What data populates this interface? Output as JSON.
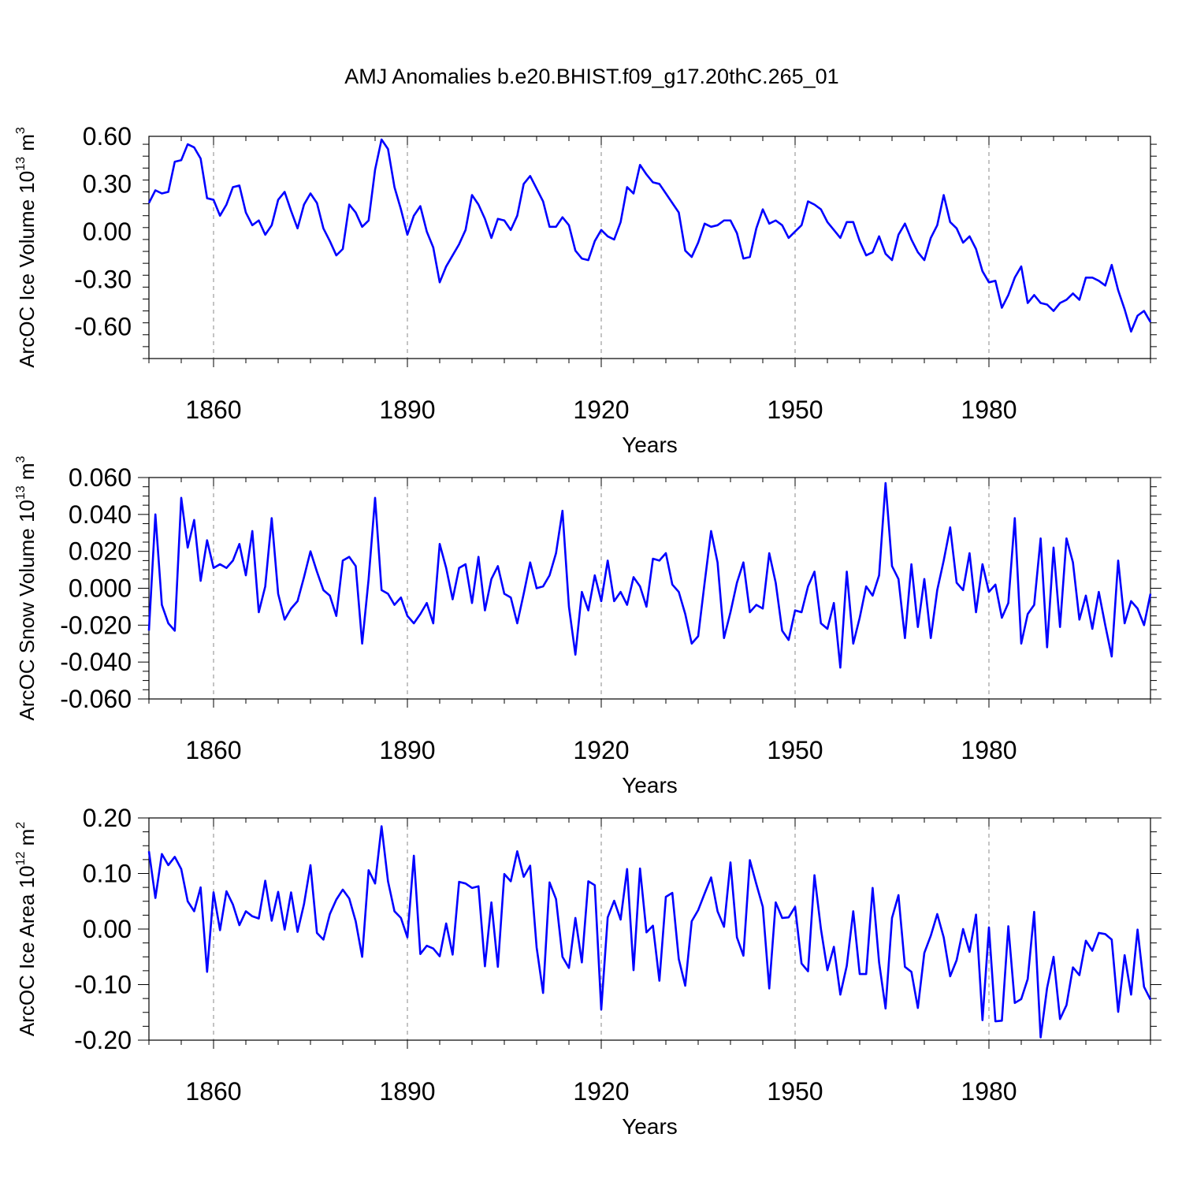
{
  "title": "AMJ Anomalies b.e20.BHIST.f09_g17.20thC.265_01",
  "colors": {
    "line": "#0000ff",
    "axis": "#000000",
    "grid": "#888888"
  },
  "chart_data": [
    {
      "type": "line",
      "xlabel": "Years",
      "ylabel": {
        "text": "ArcOC Ice Volume 10",
        "sup": "13",
        "unit": " m",
        "unit_sup": "3"
      },
      "xlim": [
        1850,
        2005
      ],
      "ylim": [
        -0.8,
        0.6
      ],
      "yticks": [
        0.6,
        0.3,
        0.0,
        -0.3,
        -0.6
      ],
      "ytick_labels": [
        "0.60",
        "0.30",
        "0.00",
        "-0.30",
        "-0.60"
      ],
      "xticks": [
        1860,
        1890,
        1920,
        1950,
        1980
      ],
      "xtick_labels": [
        "1860",
        "1890",
        "1920",
        "1950",
        "1980"
      ],
      "grid": "vertical-dashed",
      "x_start": 1850,
      "series": [
        {
          "values": [
            0.18,
            0.26,
            0.24,
            0.25,
            0.44,
            0.45,
            0.55,
            0.53,
            0.46,
            0.21,
            0.2,
            0.1,
            0.17,
            0.28,
            0.29,
            0.12,
            0.04,
            0.07,
            -0.02,
            0.04,
            0.2,
            0.25,
            0.13,
            0.02,
            0.17,
            0.24,
            0.18,
            0.02,
            -0.06,
            -0.15,
            -0.11,
            0.17,
            0.12,
            0.03,
            0.07,
            0.39,
            0.58,
            0.52,
            0.28,
            0.14,
            -0.02,
            0.1,
            0.16,
            0.0,
            -0.1,
            -0.32,
            -0.22,
            -0.15,
            -0.08,
            0.01,
            0.23,
            0.17,
            0.08,
            -0.04,
            0.08,
            0.07,
            0.01,
            0.1,
            0.3,
            0.35,
            0.27,
            0.19,
            0.03,
            0.03,
            0.09,
            0.04,
            -0.12,
            -0.17,
            -0.18,
            -0.06,
            0.01,
            -0.03,
            -0.05,
            0.06,
            0.28,
            0.24,
            0.42,
            0.36,
            0.31,
            0.3,
            0.24,
            0.18,
            0.12,
            -0.12,
            -0.16,
            -0.07,
            0.05,
            0.03,
            0.04,
            0.07,
            0.07,
            -0.01,
            -0.17,
            -0.16,
            0.02,
            0.14,
            0.05,
            0.07,
            0.04,
            -0.04,
            0.0,
            0.04,
            0.19,
            0.17,
            0.14,
            0.06,
            0.01,
            -0.04,
            0.06,
            0.06,
            -0.06,
            -0.15,
            -0.13,
            -0.03,
            -0.14,
            -0.18,
            -0.02,
            0.05,
            -0.05,
            -0.13,
            -0.18,
            -0.04,
            0.04,
            0.23,
            0.06,
            0.02,
            -0.07,
            -0.03,
            -0.11,
            -0.25,
            -0.32,
            -0.31,
            -0.48,
            -0.4,
            -0.29,
            -0.22,
            -0.45,
            -0.4,
            -0.45,
            -0.46,
            -0.5,
            -0.45,
            -0.43,
            -0.39,
            -0.43,
            -0.29,
            -0.29,
            -0.31,
            -0.34,
            -0.21,
            -0.37,
            -0.49,
            -0.63,
            -0.53,
            -0.5,
            -0.57
          ]
        }
      ]
    },
    {
      "type": "line",
      "xlabel": "Years",
      "ylabel": {
        "text": "ArcOC Snow Volume 10",
        "sup": "13",
        "unit": " m",
        "unit_sup": "3"
      },
      "xlim": [
        1850,
        2005
      ],
      "ylim": [
        -0.06,
        0.06
      ],
      "yticks": [
        0.06,
        0.04,
        0.02,
        0.0,
        -0.02,
        -0.04,
        -0.06
      ],
      "ytick_labels": [
        "0.060",
        "0.040",
        "0.020",
        "0.000",
        "-0.020",
        "-0.040",
        "-0.060"
      ],
      "xticks": [
        1860,
        1890,
        1920,
        1950,
        1980
      ],
      "xtick_labels": [
        "1860",
        "1890",
        "1920",
        "1950",
        "1980"
      ],
      "grid": "vertical-dashed",
      "x_start": 1850,
      "series": [
        {
          "values": [
            -0.023,
            0.04,
            -0.009,
            -0.019,
            -0.023,
            0.049,
            0.022,
            0.037,
            0.004,
            0.026,
            0.011,
            0.013,
            0.011,
            0.015,
            0.024,
            0.007,
            0.031,
            -0.013,
            0.001,
            0.038,
            -0.003,
            -0.017,
            -0.011,
            -0.007,
            0.006,
            0.02,
            0.009,
            -0.001,
            -0.004,
            -0.015,
            0.015,
            0.017,
            0.012,
            -0.03,
            0.005,
            0.049,
            -0.001,
            -0.003,
            -0.009,
            -0.005,
            -0.015,
            -0.019,
            -0.014,
            -0.008,
            -0.019,
            0.024,
            0.011,
            -0.006,
            0.011,
            0.013,
            -0.008,
            0.017,
            -0.012,
            0.005,
            0.012,
            -0.003,
            -0.005,
            -0.019,
            -0.003,
            0.014,
            0.0,
            0.001,
            0.007,
            0.019,
            0.042,
            -0.01,
            -0.036,
            -0.002,
            -0.012,
            0.007,
            -0.007,
            0.015,
            -0.007,
            -0.002,
            -0.009,
            0.006,
            0.001,
            -0.01,
            0.016,
            0.015,
            0.019,
            0.002,
            -0.002,
            -0.014,
            -0.03,
            -0.026,
            0.003,
            0.031,
            0.014,
            -0.027,
            -0.013,
            0.003,
            0.014,
            -0.013,
            -0.009,
            -0.011,
            0.019,
            0.003,
            -0.023,
            -0.028,
            -0.012,
            -0.013,
            0.001,
            0.009,
            -0.019,
            -0.022,
            -0.008,
            -0.043,
            0.009,
            -0.03,
            -0.016,
            0.001,
            -0.004,
            0.007,
            0.057,
            0.012,
            0.005,
            -0.027,
            0.013,
            -0.021,
            0.005,
            -0.027,
            -0.001,
            0.015,
            0.033,
            0.003,
            -0.001,
            0.019,
            -0.013,
            0.013,
            -0.002,
            0.002,
            -0.016,
            -0.008,
            0.038,
            -0.03,
            -0.014,
            -0.009,
            0.027,
            -0.032,
            0.022,
            -0.021,
            0.027,
            0.014,
            -0.017,
            -0.004,
            -0.022,
            -0.002,
            -0.02,
            -0.037,
            0.015,
            -0.019,
            -0.007,
            -0.011,
            -0.02,
            -0.003
          ]
        }
      ]
    },
    {
      "type": "line",
      "xlabel": "Years",
      "ylabel": {
        "text": "ArcOC Ice Area 10",
        "sup": "12",
        "unit": " m",
        "unit_sup": "2"
      },
      "xlim": [
        1850,
        2005
      ],
      "ylim": [
        -0.2,
        0.2
      ],
      "yticks": [
        0.2,
        0.1,
        0.0,
        -0.1,
        -0.2
      ],
      "ytick_labels": [
        "0.20",
        "0.10",
        "0.00",
        "-0.10",
        "-0.20"
      ],
      "xticks": [
        1860,
        1890,
        1920,
        1950,
        1980
      ],
      "xtick_labels": [
        "1860",
        "1890",
        "1920",
        "1950",
        "1980"
      ],
      "grid": "vertical-dashed",
      "x_start": 1850,
      "series": [
        {
          "values": [
            0.14,
            0.056,
            0.135,
            0.115,
            0.13,
            0.108,
            0.05,
            0.032,
            0.075,
            -0.077,
            0.066,
            -0.002,
            0.068,
            0.044,
            0.007,
            0.032,
            0.023,
            0.019,
            0.087,
            0.015,
            0.067,
            -0.001,
            0.066,
            -0.005,
            0.045,
            0.115,
            -0.007,
            -0.019,
            0.027,
            0.053,
            0.071,
            0.055,
            0.014,
            -0.05,
            0.106,
            0.082,
            0.185,
            0.086,
            0.032,
            0.02,
            -0.015,
            0.132,
            -0.045,
            -0.03,
            -0.035,
            -0.049,
            0.01,
            -0.046,
            0.085,
            0.082,
            0.074,
            0.077,
            -0.067,
            0.048,
            -0.068,
            0.099,
            0.086,
            0.14,
            0.094,
            0.114,
            -0.033,
            -0.115,
            0.084,
            0.054,
            -0.05,
            -0.07,
            0.02,
            -0.06,
            0.086,
            0.079,
            -0.145,
            0.021,
            0.051,
            0.017,
            0.108,
            -0.074,
            0.109,
            -0.006,
            0.006,
            -0.093,
            0.058,
            0.065,
            -0.054,
            -0.102,
            0.014,
            0.034,
            0.064,
            0.093,
            0.032,
            0.004,
            0.12,
            -0.015,
            -0.048,
            0.124,
            0.081,
            0.04,
            -0.107,
            0.048,
            0.02,
            0.021,
            0.04,
            -0.062,
            -0.076,
            0.097,
            0.0,
            -0.074,
            -0.032,
            -0.118,
            -0.066,
            0.032,
            -0.081,
            -0.081,
            0.074,
            -0.06,
            -0.143,
            0.02,
            0.061,
            -0.068,
            -0.077,
            -0.142,
            -0.043,
            -0.012,
            0.027,
            -0.015,
            -0.085,
            -0.056,
            0.0,
            -0.041,
            0.026,
            -0.164,
            0.003,
            -0.166,
            -0.165,
            0.005,
            -0.133,
            -0.126,
            -0.09,
            0.031,
            -0.195,
            -0.106,
            -0.05,
            -0.162,
            -0.137,
            -0.069,
            -0.083,
            -0.021,
            -0.039,
            -0.007,
            -0.009,
            -0.019,
            -0.149,
            -0.047,
            -0.118,
            -0.001,
            -0.104,
            -0.127
          ]
        }
      ]
    }
  ]
}
